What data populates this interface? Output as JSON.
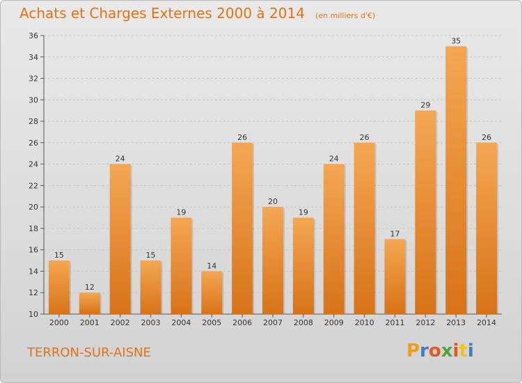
{
  "title": "Achats et Charges Externes 2000 à 2014",
  "subtitle": "(en milliers d'€)",
  "commune": "TERRON-SUR-AISNE",
  "logo": {
    "text": "Proxiti",
    "colors": [
      "#f29d1a",
      "#3a7fc4",
      "#e8561f",
      "#4aa63d",
      "#e8561f",
      "#f2c21a",
      "#3a7fc4"
    ]
  },
  "colors": {
    "accent": "#e07413",
    "bar_top": "#f4a753",
    "bar_bottom": "#d87318"
  },
  "chart_data": {
    "type": "bar",
    "title": "Achats et Charges Externes 2000 à 2014",
    "subtitle": "(en milliers d'€)",
    "categories": [
      "2000",
      "2001",
      "2002",
      "2003",
      "2004",
      "2005",
      "2006",
      "2007",
      "2008",
      "2009",
      "2010",
      "2011",
      "2012",
      "2013",
      "2014"
    ],
    "values": [
      15,
      12,
      24,
      15,
      19,
      14,
      26,
      20,
      19,
      24,
      26,
      17,
      29,
      35,
      26
    ],
    "ylim": [
      10,
      36
    ],
    "yticks": [
      10,
      12,
      14,
      16,
      18,
      20,
      22,
      24,
      26,
      28,
      30,
      32,
      34,
      36
    ],
    "grid": true,
    "legend": "none"
  }
}
